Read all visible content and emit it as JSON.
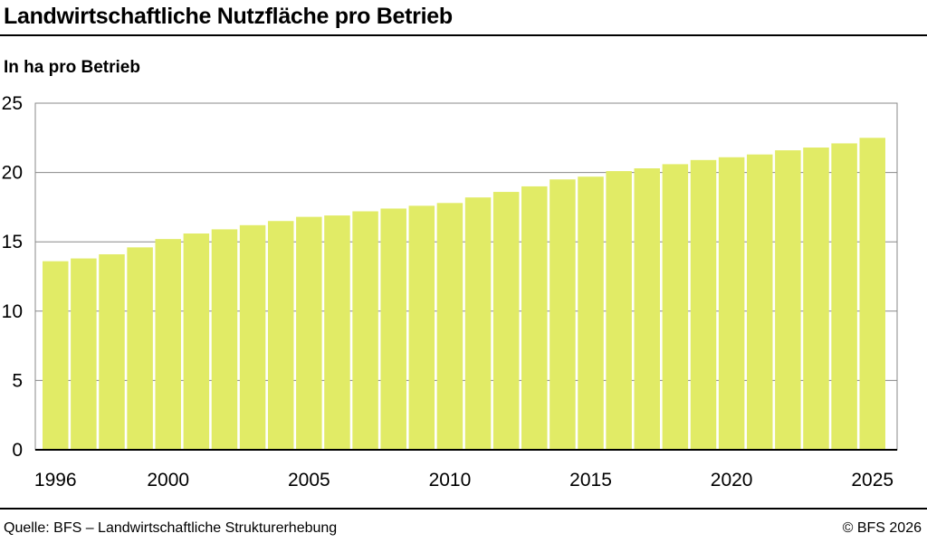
{
  "title": "Landwirtschaftliche Nutzfläche pro Betrieb",
  "subtitle": "In ha pro Betrieb",
  "source": "Quelle: BFS – Landwirtschaftliche Strukturerhebung",
  "copyright": "© BFS 2026",
  "colors": {
    "bar": "#e1eb66",
    "grid": "#888888",
    "axis": "#000000"
  },
  "chart_data": {
    "type": "bar",
    "title": "Landwirtschaftliche Nutzfläche pro Betrieb",
    "ylabel": "In ha pro Betrieb",
    "xlabel": "",
    "ylim": [
      0,
      25
    ],
    "yticks": [
      0,
      5,
      10,
      15,
      20,
      25
    ],
    "xtick_labels": [
      "1996",
      "2000",
      "2005",
      "2010",
      "2015",
      "2020",
      "2025"
    ],
    "grid": true,
    "categories": [
      "1996",
      "1997",
      "1998",
      "1999",
      "2000",
      "2001",
      "2002",
      "2003",
      "2004",
      "2005",
      "2006",
      "2007",
      "2008",
      "2009",
      "2010",
      "2011",
      "2012",
      "2013",
      "2014",
      "2015",
      "2016",
      "2017",
      "2018",
      "2019",
      "2020",
      "2021",
      "2022",
      "2023",
      "2024",
      "2025"
    ],
    "values": [
      13.6,
      13.8,
      14.1,
      14.6,
      15.2,
      15.6,
      15.9,
      16.2,
      16.5,
      16.8,
      16.9,
      17.2,
      17.4,
      17.6,
      17.8,
      18.2,
      18.6,
      19.0,
      19.5,
      19.7,
      20.1,
      20.3,
      20.6,
      20.9,
      21.1,
      21.3,
      21.6,
      21.8,
      22.1,
      22.5
    ]
  }
}
